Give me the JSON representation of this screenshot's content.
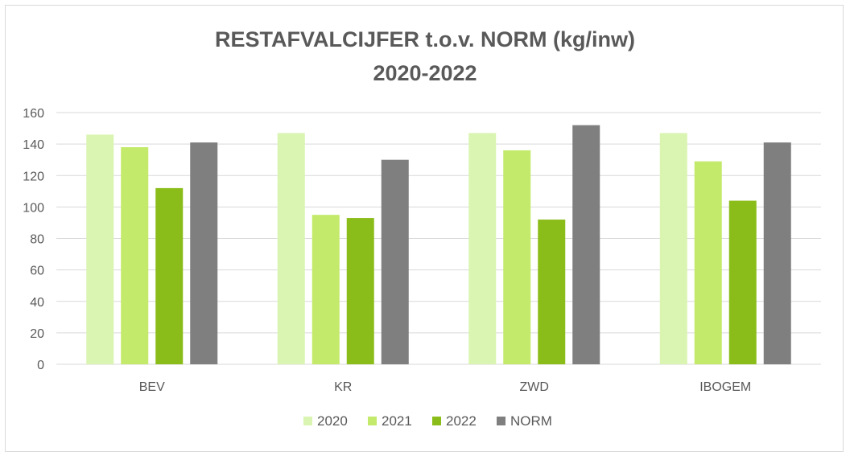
{
  "chart_data": {
    "type": "bar",
    "title": "RESTAFVALCIJFER t.o.v. NORM (kg/inw)",
    "subtitle": "2020-2022",
    "xlabel": "",
    "ylabel": "",
    "categories": [
      "BEV",
      "KR",
      "ZWD",
      "IBOGEM"
    ],
    "series": [
      {
        "name": "2020",
        "color": "#d9f5b1",
        "values": [
          146,
          147,
          147,
          147
        ]
      },
      {
        "name": "2021",
        "color": "#c3ea6b",
        "values": [
          138,
          95,
          136,
          129
        ]
      },
      {
        "name": "2022",
        "color": "#8bbd1a",
        "values": [
          112,
          93,
          92,
          104
        ]
      },
      {
        "name": "NORM",
        "color": "#7f7f7f",
        "values": [
          141,
          130,
          152,
          141
        ]
      }
    ],
    "ylim": [
      0,
      160
    ],
    "yticks": [
      0,
      20,
      40,
      60,
      80,
      100,
      120,
      140,
      160
    ],
    "grid": true,
    "legend": "bottom"
  }
}
